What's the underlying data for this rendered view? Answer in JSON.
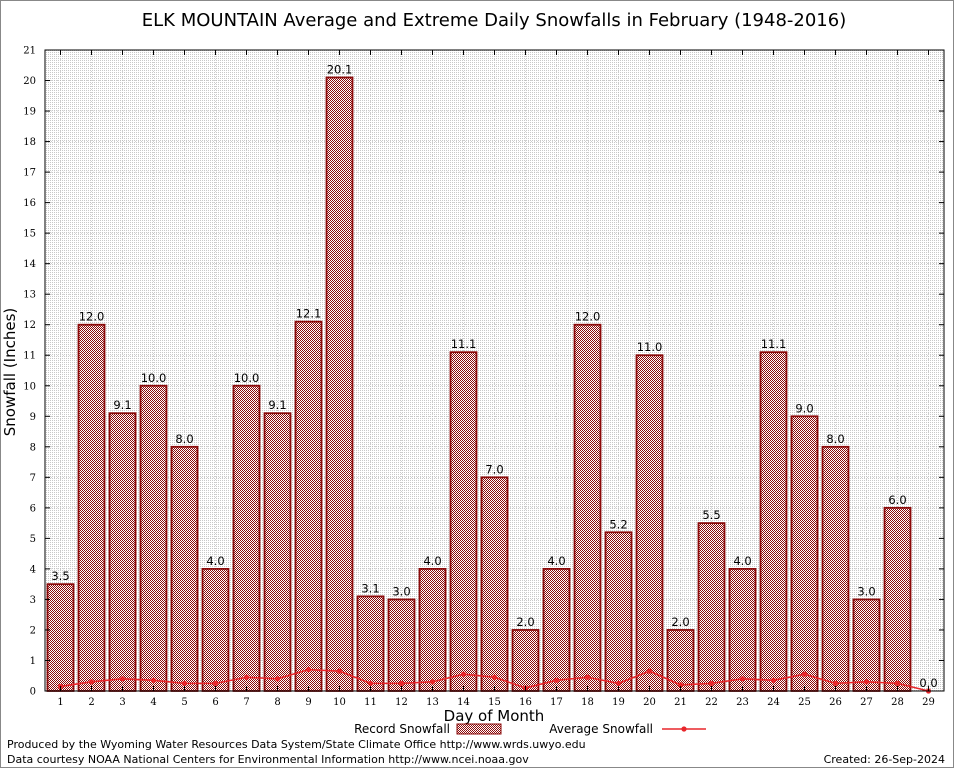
{
  "footer": {
    "line1": "Produced by the Wyoming Water Resources Data System/State Climate Office http://www.wrds.uwyo.edu",
    "line2": "Data courtesy NOAA National Centers for Environmental Information http://www.ncei.noaa.gov",
    "created": "Created:  26-Sep-2024"
  },
  "chart_data": {
    "type": "bar",
    "title": "ELK MOUNTAIN Average and Extreme Daily Snowfalls in February (1948-2016)",
    "xlabel": "Day of Month",
    "ylabel": "Snowfall (Inches)",
    "ylim": [
      0,
      21
    ],
    "yticks": [
      0,
      1,
      2,
      3,
      4,
      5,
      6,
      7,
      8,
      9,
      10,
      11,
      12,
      13,
      14,
      15,
      16,
      17,
      18,
      19,
      20,
      21
    ],
    "grid": true,
    "legend_position": "bottom",
    "colors": {
      "record": "#8b0a0a",
      "average": "#e8262b"
    },
    "categories": [
      "1",
      "2",
      "3",
      "4",
      "5",
      "6",
      "7",
      "8",
      "9",
      "10",
      "11",
      "12",
      "13",
      "14",
      "15",
      "16",
      "17",
      "18",
      "19",
      "20",
      "21",
      "22",
      "23",
      "24",
      "25",
      "26",
      "27",
      "28",
      "29"
    ],
    "series": [
      {
        "name": "Record Snowfall",
        "type": "bar",
        "values": [
          3.5,
          12.0,
          9.1,
          10.0,
          8.0,
          4.0,
          10.0,
          9.1,
          12.1,
          20.1,
          3.1,
          3.0,
          4.0,
          11.1,
          7.0,
          2.0,
          4.0,
          12.0,
          5.2,
          11.0,
          2.0,
          5.5,
          4.0,
          11.1,
          9.0,
          8.0,
          3.0,
          6.0,
          0.0
        ],
        "labels": [
          "3.5",
          "12.0",
          "9.1",
          "10.0",
          "8.0",
          "4.0",
          "10.0",
          "9.1",
          "12.1",
          "20.1",
          "3.1",
          "3.0",
          "4.0",
          "11.1",
          "7.0",
          "2.0",
          "4.0",
          "12.0",
          "5.2",
          "11.0",
          "2.0",
          "5.5",
          "4.0",
          "11.1",
          "9.0",
          "8.0",
          "3.0",
          "6.0",
          "0.0"
        ]
      },
      {
        "name": "Average Snowfall",
        "type": "line",
        "values": [
          0.15,
          0.3,
          0.4,
          0.35,
          0.25,
          0.25,
          0.45,
          0.4,
          0.7,
          0.65,
          0.25,
          0.25,
          0.3,
          0.55,
          0.45,
          0.1,
          0.35,
          0.45,
          0.25,
          0.65,
          0.2,
          0.25,
          0.4,
          0.35,
          0.55,
          0.25,
          0.3,
          0.25,
          0.0
        ]
      }
    ]
  }
}
